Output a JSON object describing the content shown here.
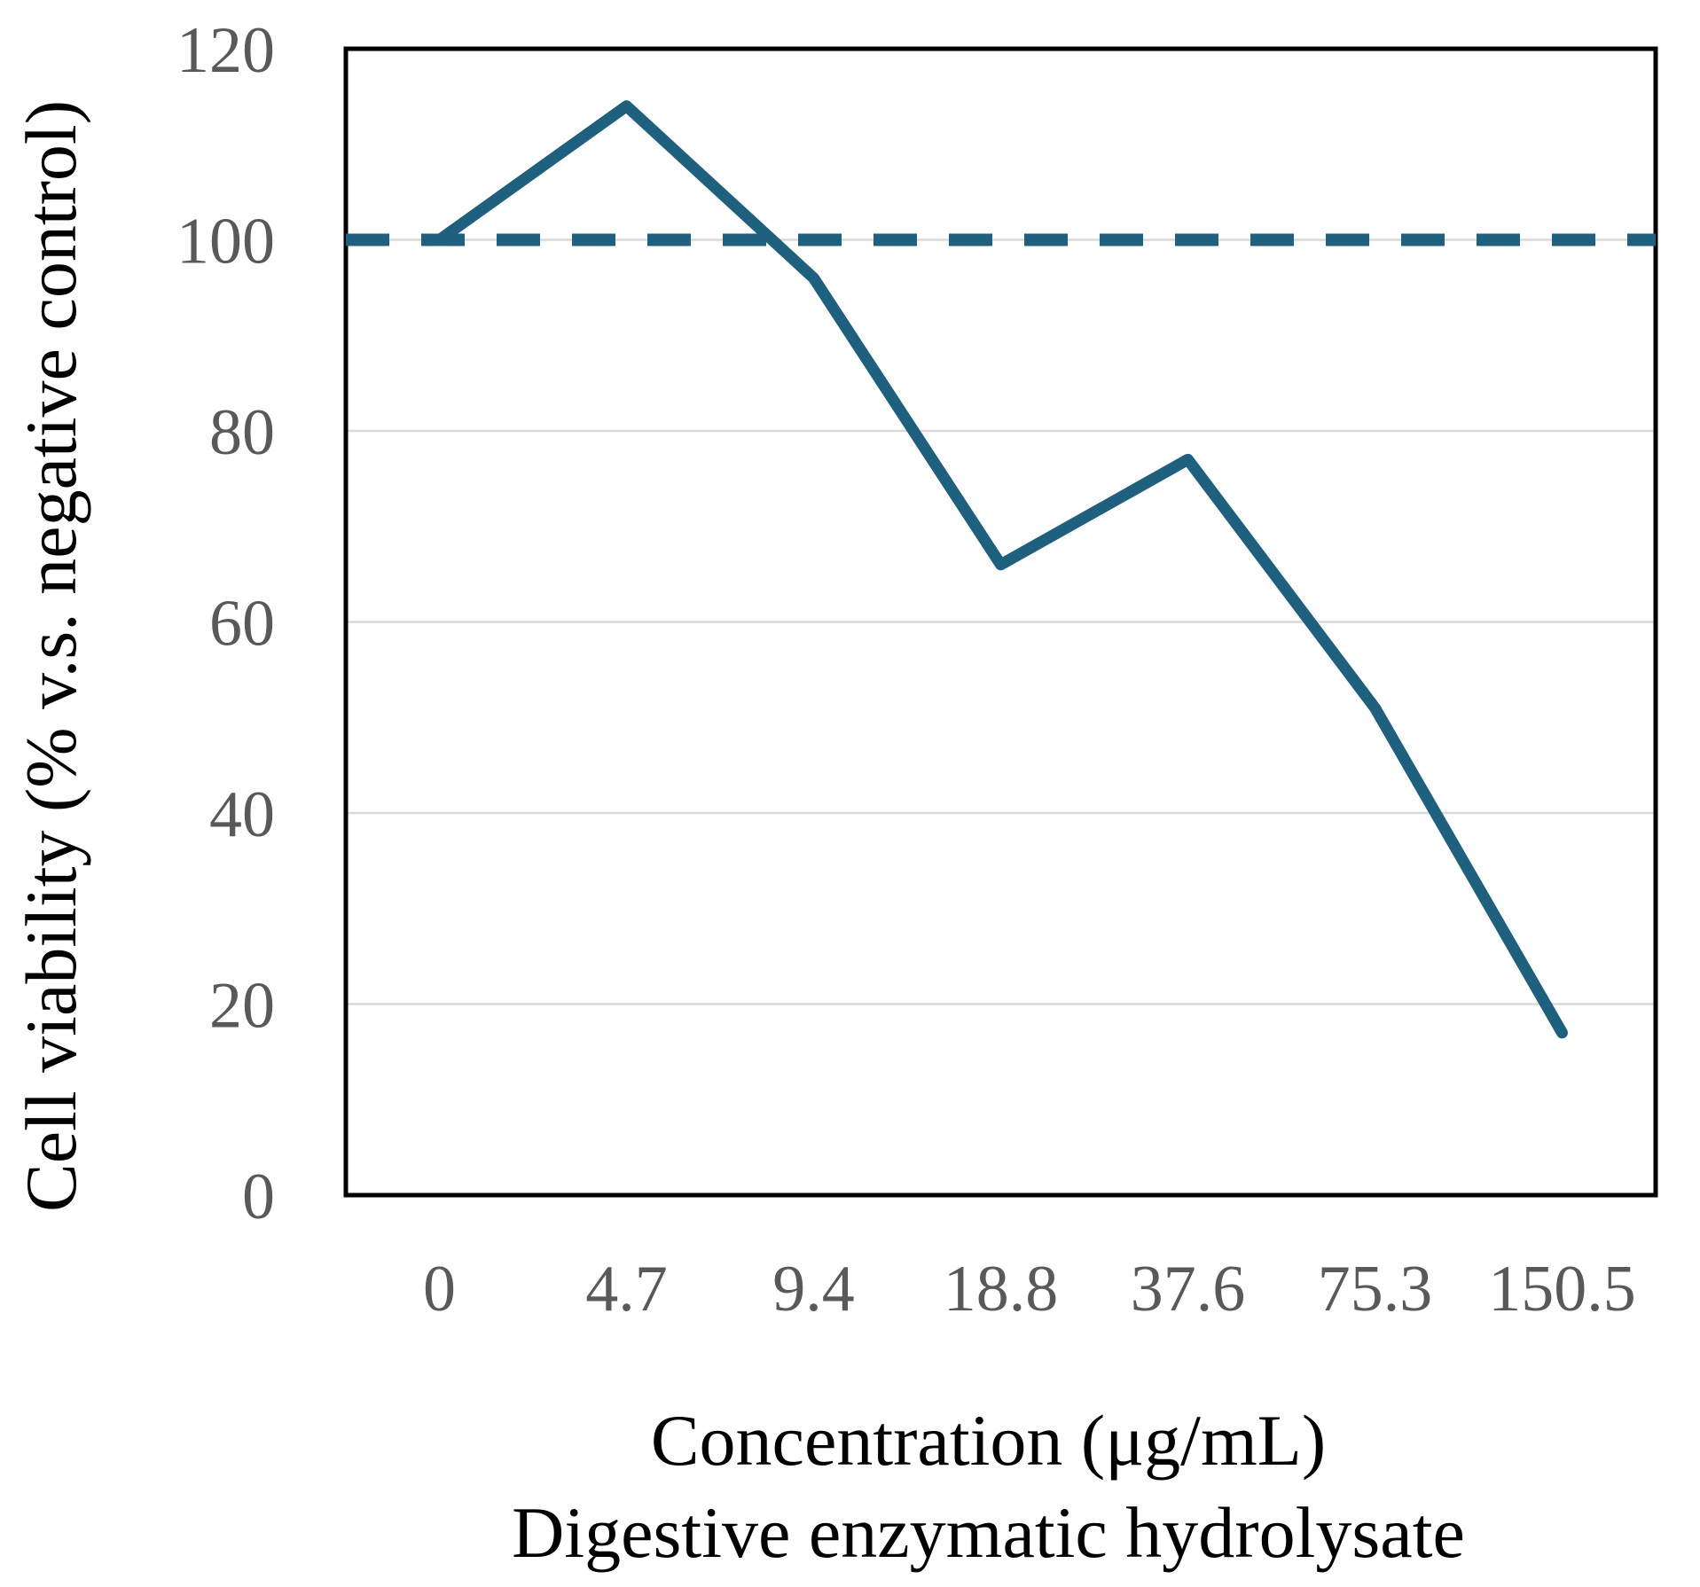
{
  "figure": {
    "description": "Line chart of cell viability versus concentration of digestive enzymatic hydrolysate, with dashed 100% negative-control reference line"
  },
  "chart_data": {
    "type": "line",
    "categories": [
      "0",
      "4.7",
      "9.4",
      "18.8",
      "37.6",
      "75.3",
      "150.5"
    ],
    "series": [
      {
        "name": "Digestive enzymatic hydrolysate",
        "values": [
          100,
          114,
          96,
          66,
          77,
          51,
          17
        ],
        "style": "solid"
      }
    ],
    "reference_line": {
      "value": 100,
      "style": "dashed",
      "meaning": "negative control level (100%)"
    },
    "ylabel": "Cell viability  (% v.s. negative control)",
    "xlabel_line1": "Concentration (μg/mL)",
    "xlabel_line2": "Digestive enzymatic hydrolysate",
    "ylim": [
      0,
      120
    ],
    "ytick_step": 20,
    "yticks": [
      "0",
      "20",
      "40",
      "60",
      "80",
      "100",
      "120"
    ],
    "grid": true,
    "legend": "none",
    "colors": {
      "line": "#20607f",
      "reference_line": "#20607f",
      "gridline": "#d9d9d9",
      "tick_label": "#595959",
      "axis_title": "#000000",
      "frame": "#000000",
      "background": "#ffffff"
    }
  }
}
